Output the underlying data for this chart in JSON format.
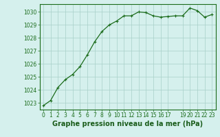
{
  "x": [
    0,
    1,
    2,
    3,
    4,
    5,
    6,
    7,
    8,
    9,
    10,
    11,
    12,
    13,
    14,
    15,
    16,
    17,
    18,
    19,
    20,
    21,
    22,
    23
  ],
  "y": [
    1022.8,
    1023.2,
    1024.2,
    1024.8,
    1025.2,
    1025.8,
    1026.7,
    1027.7,
    1028.5,
    1029.0,
    1029.3,
    1029.7,
    1029.7,
    1030.0,
    1029.95,
    1029.7,
    1029.6,
    1029.65,
    1029.7,
    1029.7,
    1030.3,
    1030.1,
    1029.6,
    1029.8
  ],
  "line_color": "#1a6b1a",
  "marker": "+",
  "marker_size": 3,
  "marker_color": "#1a6b1a",
  "bg_color": "#d5f0ed",
  "grid_color": "#a8cfc8",
  "xlabel": "Graphe pression niveau de la mer (hPa)",
  "xlabel_color": "#1a5c1a",
  "xlabel_fontsize": 7,
  "ylim": [
    1022.5,
    1030.6
  ],
  "yticks": [
    1023,
    1024,
    1025,
    1026,
    1027,
    1028,
    1029,
    1030
  ],
  "ytick_labels": [
    "1023",
    "1024",
    "1025",
    "1026",
    "1027",
    "1028",
    "1029",
    "1030"
  ],
  "xticks": [
    0,
    1,
    2,
    3,
    4,
    5,
    6,
    7,
    8,
    9,
    10,
    11,
    12,
    13,
    14,
    15,
    16,
    17,
    19,
    20,
    21,
    22,
    23
  ],
  "xtick_labels": [
    "0",
    "1",
    "2",
    "3",
    "4",
    "5",
    "6",
    "7",
    "8",
    "9",
    "10",
    "11",
    "12",
    "13",
    "14",
    "15",
    "16",
    "17",
    "19",
    "20",
    "21",
    "22",
    "23"
  ],
  "tick_color": "#1a6b1a",
  "ytick_fontsize": 5.5,
  "xtick_fontsize": 5.5,
  "spine_color": "#1a6b1a",
  "line_width": 0.9
}
